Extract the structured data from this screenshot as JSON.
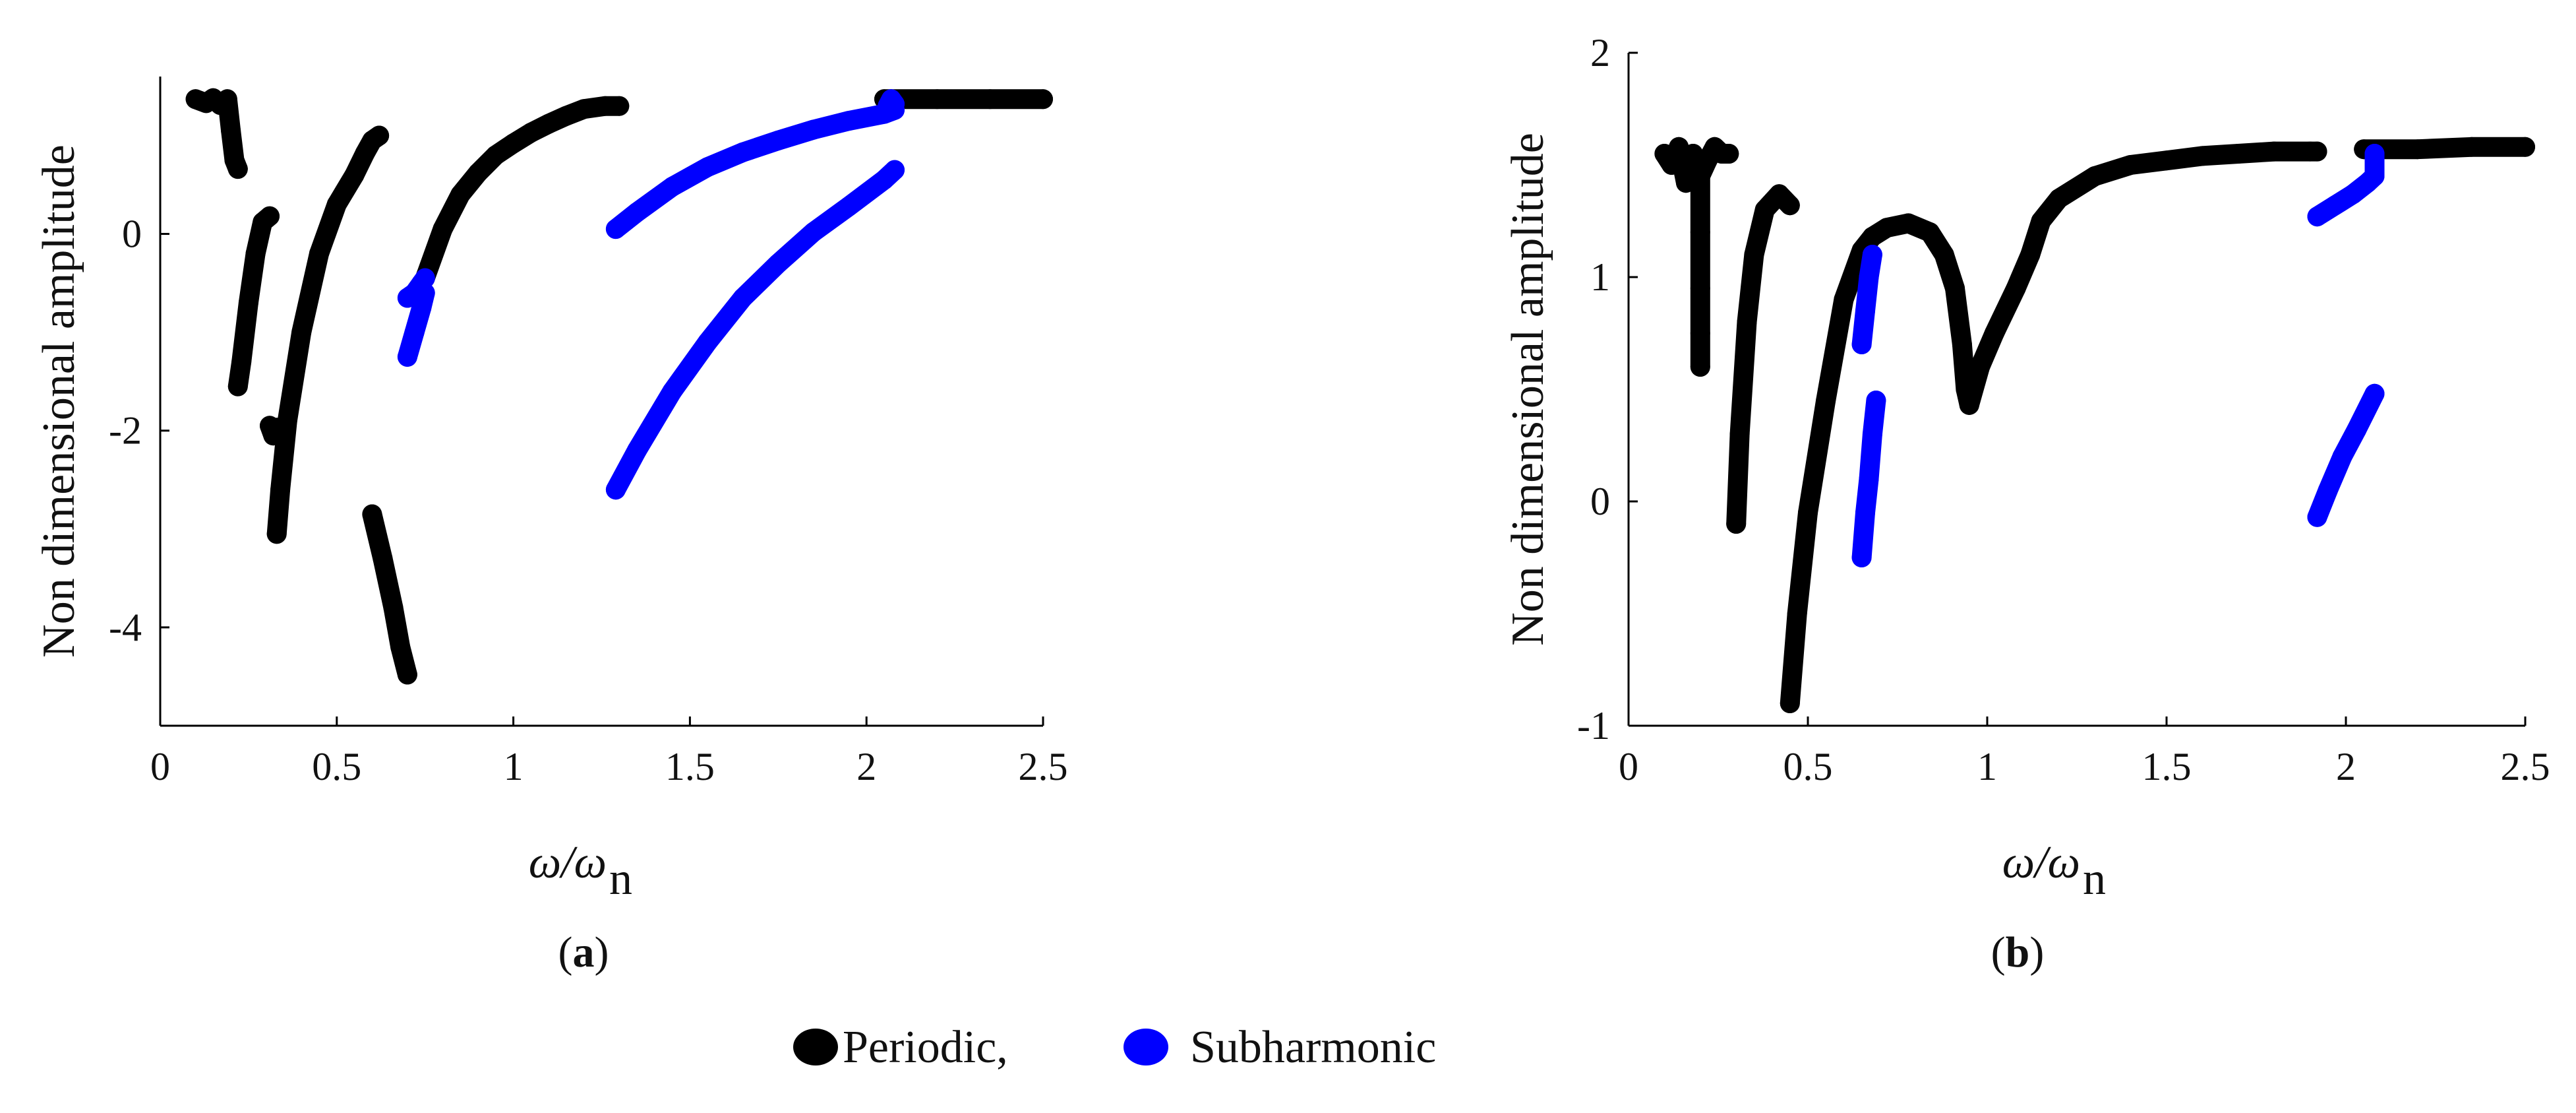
{
  "legend": {
    "periodic": "Periodic,",
    "subharmonic": "Subharmonic",
    "periodic_color": "#000000",
    "subharmonic_color": "#0000ff"
  },
  "chart_data": [
    {
      "type": "scatter",
      "panel": "(a)",
      "caption_letter": "a",
      "xlabel_main": "ω/ω",
      "xlabel_sub": "n",
      "ylabel": "Non dimensional amplitude",
      "xlim": [
        0,
        2.5
      ],
      "ylim": [
        -5,
        1.6
      ],
      "xticks": [
        0,
        0.5,
        1,
        1.5,
        2,
        2.5
      ],
      "xtick_labels": [
        "0",
        "0.5",
        "1",
        "1.5",
        "2",
        "2.5"
      ],
      "yticks": [
        -4,
        -2,
        0
      ],
      "ytick_labels": [
        "-4",
        "-2",
        "0"
      ],
      "series": [
        {
          "name": "Periodic",
          "color": "#000000",
          "segments": [
            [
              [
                0.1,
                1.37
              ],
              [
                0.13,
                1.33
              ],
              [
                0.15,
                1.38
              ],
              [
                0.17,
                1.31
              ],
              [
                0.19,
                1.37
              ],
              [
                0.2,
                1.05
              ],
              [
                0.21,
                0.75
              ],
              [
                0.22,
                0.66
              ]
            ],
            [
              [
                0.22,
                -1.55
              ],
              [
                0.23,
                -1.3
              ],
              [
                0.25,
                -0.7
              ],
              [
                0.27,
                -0.2
              ],
              [
                0.29,
                0.12
              ],
              [
                0.31,
                0.18
              ]
            ],
            [
              [
                0.31,
                -1.95
              ],
              [
                0.32,
                -2.05
              ],
              [
                0.33,
                -1.97
              ]
            ],
            [
              [
                0.33,
                -3.05
              ],
              [
                0.34,
                -2.6
              ],
              [
                0.36,
                -1.9
              ],
              [
                0.4,
                -1.0
              ],
              [
                0.45,
                -0.2
              ],
              [
                0.5,
                0.3
              ],
              [
                0.55,
                0.6
              ],
              [
                0.58,
                0.82
              ],
              [
                0.6,
                0.95
              ],
              [
                0.62,
                1.0
              ]
            ],
            [
              [
                0.6,
                -2.85
              ],
              [
                0.63,
                -3.3
              ],
              [
                0.66,
                -3.8
              ],
              [
                0.68,
                -4.2
              ],
              [
                0.7,
                -4.48
              ]
            ],
            [
              [
                0.75,
                -0.45
              ],
              [
                0.8,
                0.05
              ],
              [
                0.85,
                0.4
              ],
              [
                0.9,
                0.62
              ],
              [
                0.95,
                0.8
              ],
              [
                1.0,
                0.92
              ],
              [
                1.05,
                1.03
              ],
              [
                1.1,
                1.12
              ],
              [
                1.15,
                1.2
              ],
              [
                1.2,
                1.27
              ],
              [
                1.26,
                1.3
              ],
              [
                1.3,
                1.3
              ]
            ],
            [
              [
                2.05,
                1.37
              ],
              [
                2.2,
                1.37
              ],
              [
                2.35,
                1.37
              ],
              [
                2.5,
                1.37
              ]
            ]
          ]
        },
        {
          "name": "Subharmonic",
          "color": "#0000ff",
          "segments": [
            [
              [
                0.7,
                -0.65
              ],
              [
                0.72,
                -0.6
              ],
              [
                0.74,
                -0.5
              ],
              [
                0.75,
                -0.45
              ]
            ],
            [
              [
                0.7,
                -1.25
              ],
              [
                0.72,
                -1.0
              ],
              [
                0.74,
                -0.75
              ],
              [
                0.75,
                -0.6
              ]
            ],
            [
              [
                1.29,
                0.05
              ],
              [
                1.35,
                0.22
              ],
              [
                1.45,
                0.48
              ],
              [
                1.55,
                0.68
              ],
              [
                1.65,
                0.83
              ],
              [
                1.75,
                0.95
              ],
              [
                1.85,
                1.06
              ],
              [
                1.95,
                1.15
              ],
              [
                2.05,
                1.22
              ],
              [
                2.08,
                1.26
              ]
            ],
            [
              [
                1.29,
                -2.6
              ],
              [
                1.35,
                -2.2
              ],
              [
                1.45,
                -1.6
              ],
              [
                1.55,
                -1.1
              ],
              [
                1.65,
                -0.65
              ],
              [
                1.75,
                -0.3
              ],
              [
                1.85,
                0.02
              ],
              [
                1.95,
                0.28
              ],
              [
                2.05,
                0.55
              ],
              [
                2.08,
                0.65
              ]
            ],
            [
              [
                2.06,
                1.3
              ],
              [
                2.07,
                1.37
              ],
              [
                2.08,
                1.32
              ]
            ]
          ]
        }
      ]
    },
    {
      "type": "scatter",
      "panel": "(b)",
      "caption_letter": "b",
      "xlabel_main": "ω/ω",
      "xlabel_sub": "n",
      "ylabel": "Non dimensional amplitude",
      "xlim": [
        0,
        2.5
      ],
      "ylim": [
        -1,
        2
      ],
      "xticks": [
        0,
        0.5,
        1,
        1.5,
        2,
        2.5
      ],
      "xtick_labels": [
        "0",
        "0.5",
        "1",
        "1.5",
        "2",
        "2.5"
      ],
      "yticks": [
        -1,
        0,
        1,
        2
      ],
      "ytick_labels": [
        "-1",
        "0",
        "1",
        "2"
      ],
      "series": [
        {
          "name": "Periodic",
          "color": "#000000",
          "segments": [
            [
              [
                0.1,
                1.55
              ],
              [
                0.12,
                1.5
              ],
              [
                0.14,
                1.58
              ],
              [
                0.16,
                1.42
              ],
              [
                0.18,
                1.55
              ],
              [
                0.2,
                1.45
              ],
              [
                0.22,
                1.52
              ],
              [
                0.24,
                1.58
              ],
              [
                0.26,
                1.55
              ],
              [
                0.28,
                1.55
              ]
            ],
            [
              [
                0.2,
                1.45
              ],
              [
                0.2,
                1.2
              ],
              [
                0.2,
                0.95
              ],
              [
                0.2,
                0.75
              ],
              [
                0.2,
                0.6
              ]
            ],
            [
              [
                0.3,
                -0.1
              ],
              [
                0.31,
                0.3
              ],
              [
                0.33,
                0.8
              ],
              [
                0.35,
                1.1
              ],
              [
                0.38,
                1.3
              ],
              [
                0.42,
                1.37
              ],
              [
                0.45,
                1.32
              ]
            ],
            [
              [
                0.45,
                -0.9
              ],
              [
                0.47,
                -0.5
              ],
              [
                0.5,
                -0.05
              ],
              [
                0.55,
                0.45
              ],
              [
                0.6,
                0.9
              ],
              [
                0.65,
                1.12
              ],
              [
                0.68,
                1.18
              ]
            ],
            [
              [
                0.68,
                1.18
              ],
              [
                0.72,
                1.22
              ],
              [
                0.78,
                1.24
              ],
              [
                0.84,
                1.2
              ],
              [
                0.88,
                1.1
              ],
              [
                0.91,
                0.95
              ],
              [
                0.93,
                0.7
              ],
              [
                0.94,
                0.5
              ],
              [
                0.95,
                0.43
              ]
            ],
            [
              [
                0.95,
                0.43
              ],
              [
                0.98,
                0.6
              ],
              [
                1.02,
                0.75
              ],
              [
                1.08,
                0.95
              ],
              [
                1.12,
                1.1
              ],
              [
                1.15,
                1.25
              ],
              [
                1.2,
                1.35
              ],
              [
                1.3,
                1.45
              ],
              [
                1.4,
                1.5
              ],
              [
                1.5,
                1.52
              ],
              [
                1.6,
                1.54
              ],
              [
                1.7,
                1.55
              ],
              [
                1.8,
                1.56
              ],
              [
                1.9,
                1.56
              ],
              [
                1.92,
                1.56
              ]
            ],
            [
              [
                2.05,
                1.57
              ],
              [
                2.2,
                1.57
              ],
              [
                2.35,
                1.58
              ],
              [
                2.5,
                1.58
              ]
            ]
          ]
        },
        {
          "name": "Subharmonic",
          "color": "#0000ff",
          "segments": [
            [
              [
                0.65,
                0.7
              ],
              [
                0.66,
                0.85
              ],
              [
                0.67,
                1.0
              ],
              [
                0.68,
                1.1
              ]
            ],
            [
              [
                0.65,
                -0.25
              ],
              [
                0.66,
                -0.05
              ],
              [
                0.67,
                0.1
              ],
              [
                0.68,
                0.3
              ],
              [
                0.69,
                0.45
              ]
            ],
            [
              [
                1.92,
                -0.07
              ],
              [
                1.95,
                0.05
              ],
              [
                1.99,
                0.2
              ],
              [
                2.03,
                0.32
              ],
              [
                2.08,
                0.48
              ]
            ],
            [
              [
                1.92,
                1.27
              ],
              [
                1.97,
                1.32
              ],
              [
                2.02,
                1.37
              ],
              [
                2.06,
                1.42
              ],
              [
                2.08,
                1.45
              ],
              [
                2.08,
                1.55
              ]
            ]
          ]
        }
      ]
    }
  ]
}
